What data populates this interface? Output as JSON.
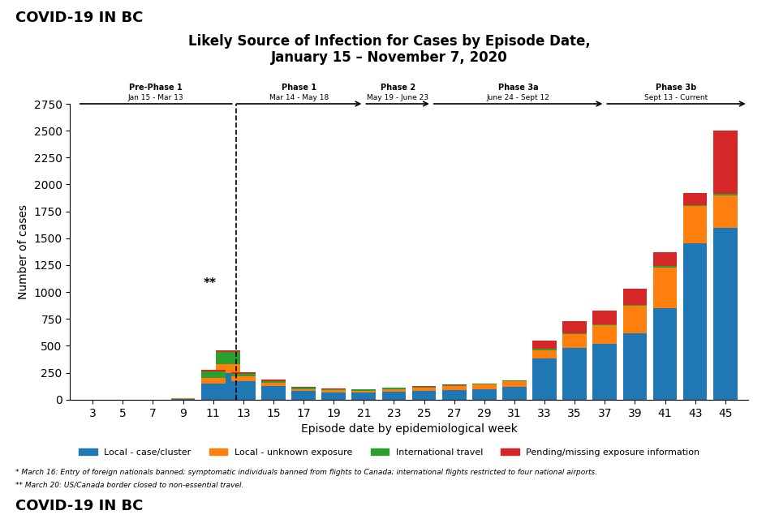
{
  "chart_data": {
    "type": "bar",
    "stacked": true,
    "header": "COVID-19 IN BC",
    "title": "Likely Source of Infection for Cases by Episode Date,",
    "subtitle": "January 15 – November 7, 2020",
    "x_label": "Episode date by epidemiological week",
    "y_label": "Number of cases",
    "x": [
      3,
      5,
      7,
      9,
      11,
      12,
      13,
      15,
      17,
      19,
      21,
      23,
      25,
      27,
      29,
      31,
      33,
      35,
      37,
      39,
      41,
      43,
      45
    ],
    "xlim": [
      1.5,
      46.5
    ],
    "xticks": [
      3,
      5,
      7,
      9,
      11,
      13,
      15,
      17,
      19,
      21,
      23,
      25,
      27,
      29,
      31,
      33,
      35,
      37,
      39,
      41,
      43,
      45
    ],
    "ylim": [
      0,
      2750
    ],
    "yticks": [
      0,
      250,
      500,
      750,
      1000,
      1250,
      1500,
      1750,
      2000,
      2250,
      2500,
      2750
    ],
    "grid": false,
    "legend": "lower center",
    "series": [
      {
        "name": "Local - case/cluster",
        "values": [
          0,
          0,
          0,
          5,
          150,
          250,
          175,
          130,
          80,
          70,
          65,
          75,
          80,
          90,
          100,
          120,
          380,
          480,
          520,
          620,
          850,
          1450,
          1600
        ]
      },
      {
        "name": "Local - unknown exposure",
        "values": [
          0,
          0,
          0,
          5,
          50,
          80,
          40,
          30,
          20,
          20,
          20,
          25,
          30,
          35,
          40,
          50,
          80,
          130,
          170,
          250,
          380,
          350,
          300
        ]
      },
      {
        "name": "International travel",
        "values": [
          0,
          0,
          0,
          5,
          60,
          110,
          25,
          15,
          10,
          8,
          8,
          8,
          8,
          8,
          8,
          8,
          10,
          10,
          10,
          10,
          10,
          10,
          10
        ]
      },
      {
        "name": "Pending/missing exposure information",
        "values": [
          0,
          0,
          0,
          2,
          20,
          15,
          15,
          10,
          8,
          5,
          5,
          5,
          5,
          5,
          5,
          5,
          80,
          110,
          130,
          150,
          130,
          110,
          590
        ]
      }
    ],
    "annotations": [
      {
        "text": "**",
        "x": 10.8,
        "y": 1080
      }
    ],
    "vertical_lines": [
      {
        "x": 12.5,
        "line_style": "dashed"
      }
    ],
    "phases": [
      {
        "label": "Pre-Phase 1",
        "sublabel": "Jan 15 - Mar 13",
        "x_start": 2,
        "x_end": 12.4,
        "arrow": false
      },
      {
        "label": "Phase 1",
        "sublabel": "Mar 14 - May 18",
        "x_start": 12.4,
        "x_end": 21,
        "arrow": true
      },
      {
        "label": "Phase 2",
        "sublabel": "May 19 - June 23",
        "x_start": 21,
        "x_end": 25.5,
        "arrow": true
      },
      {
        "label": "Phase 3a",
        "sublabel": "June 24 - Sept 12",
        "x_start": 25.5,
        "x_end": 37,
        "arrow": true
      },
      {
        "label": "Phase 3b",
        "sublabel": "Sept 13 - Current",
        "x_start": 37,
        "x_end": 46.5,
        "arrow": true
      }
    ],
    "footnotes": [
      "* March 16: Entry of foreign nationals banned; symptomatic individuals banned from flights to Canada; international flights restricted to four national airports.",
      "** March 20: US/Canada border closed to non-essential travel."
    ]
  }
}
